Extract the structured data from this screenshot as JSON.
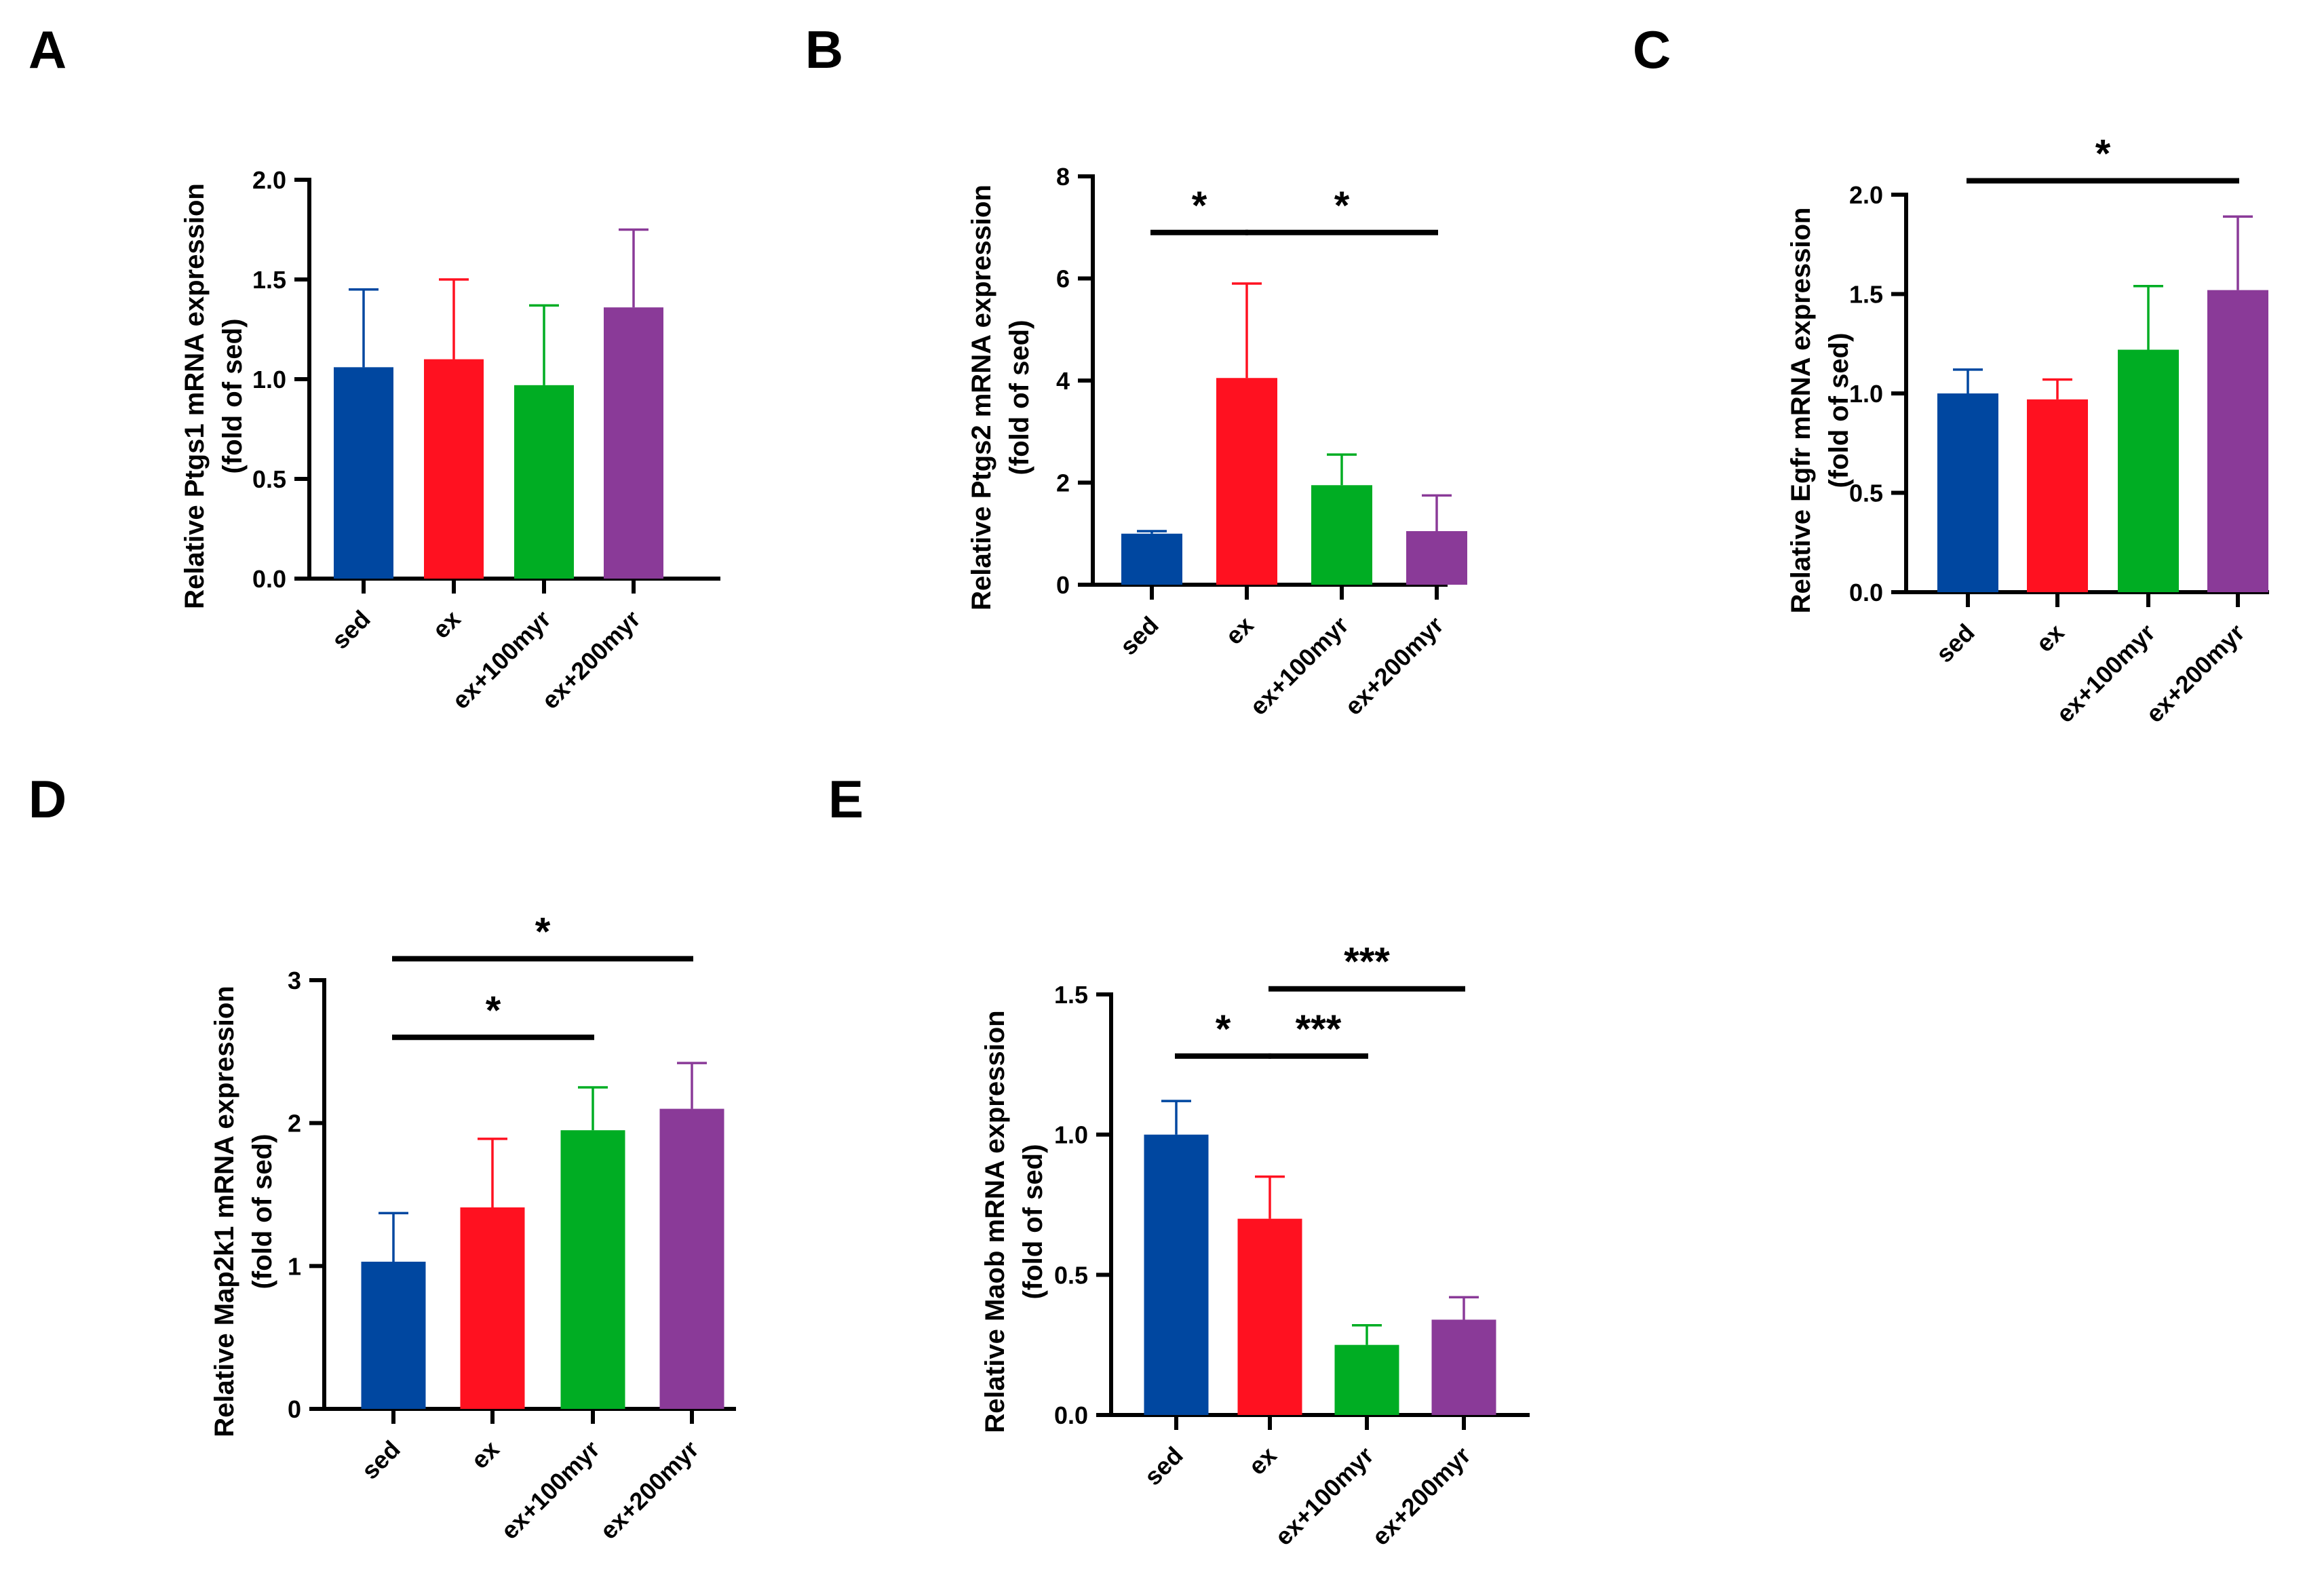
{
  "figure": {
    "categories": [
      "sed",
      "ex",
      "ex+100myr",
      "ex+200myr"
    ],
    "colors": [
      "#0047a0",
      "#ff1120",
      "#00ad23",
      "#8a3a98"
    ]
  },
  "chart_data": [
    {
      "panel": "A",
      "type": "bar",
      "categories": [
        "sed",
        "ex",
        "ex+100myr",
        "ex+200myr"
      ],
      "series": [
        {
          "values": [
            1.06,
            1.1,
            0.97,
            1.36
          ],
          "errors": [
            0.39,
            0.4,
            0.4,
            0.39
          ]
        }
      ],
      "ylabel": [
        "Relative Ptgs1 mRNA expression",
        "(fold of sed)"
      ],
      "ylim": [
        0,
        2
      ],
      "yticks": [
        "0.0",
        "0.5",
        "1.0",
        "1.5",
        "2.0"
      ],
      "significance": []
    },
    {
      "panel": "B",
      "type": "bar",
      "categories": [
        "sed",
        "ex",
        "ex+100myr",
        "ex+200myr"
      ],
      "series": [
        {
          "values": [
            1.0,
            4.05,
            1.95,
            1.05
          ],
          "errors": [
            0.05,
            1.85,
            0.6,
            0.7
          ]
        }
      ],
      "ylabel": [
        "Relative Ptgs2 mRNA expression",
        "(fold of sed)"
      ],
      "ylim": [
        0,
        8
      ],
      "yticks": [
        "0",
        "2",
        "4",
        "6",
        "8"
      ],
      "significance": [
        {
          "from": 0,
          "to": 1,
          "y": 6.9,
          "label": "*"
        },
        {
          "from": 1,
          "to": 3,
          "y": 6.9,
          "label": "*"
        }
      ]
    },
    {
      "panel": "C",
      "type": "bar",
      "categories": [
        "sed",
        "ex",
        "ex+100myr",
        "ex+200myr"
      ],
      "series": [
        {
          "values": [
            1.0,
            0.97,
            1.22,
            1.52
          ],
          "errors": [
            0.12,
            0.1,
            0.32,
            0.37
          ]
        }
      ],
      "ylabel": [
        "Relative Egfr mRNA expression",
        "(fold of sed)"
      ],
      "ylim": [
        0,
        2
      ],
      "yticks": [
        "0.0",
        "0.5",
        "1.0",
        "1.5",
        "2.0"
      ],
      "significance": [
        {
          "from": 0,
          "to": 3,
          "y": 2.07,
          "label": "*"
        }
      ]
    },
    {
      "panel": "D",
      "type": "bar",
      "categories": [
        "sed",
        "ex",
        "ex+100myr",
        "ex+200myr"
      ],
      "series": [
        {
          "values": [
            1.03,
            1.41,
            1.95,
            2.1
          ],
          "errors": [
            0.34,
            0.48,
            0.3,
            0.32
          ]
        }
      ],
      "ylabel": [
        "Relative Map2k1 mRNA expression",
        "(fold of sed)"
      ],
      "ylim": [
        0,
        3
      ],
      "yticks": [
        "0",
        "1",
        "2",
        "3"
      ],
      "significance": [
        {
          "from": 0,
          "to": 2,
          "y": 2.6,
          "label": "*"
        },
        {
          "from": 0,
          "to": 3,
          "y": 3.15,
          "label": "*"
        }
      ]
    },
    {
      "panel": "E",
      "type": "bar",
      "categories": [
        "sed",
        "ex",
        "ex+100myr",
        "ex+200myr"
      ],
      "series": [
        {
          "values": [
            1.0,
            0.7,
            0.25,
            0.34
          ],
          "errors": [
            0.12,
            0.15,
            0.07,
            0.08
          ]
        }
      ],
      "ylabel": [
        "Relative Maob mRNA expression",
        "(fold of sed)"
      ],
      "ylim": [
        0,
        1.5
      ],
      "yticks": [
        "0.0",
        "0.5",
        "1.0",
        "1.5"
      ],
      "significance": [
        {
          "from": 0,
          "to": 1,
          "y": 1.28,
          "label": "*"
        },
        {
          "from": 1,
          "to": 2,
          "y": 1.28,
          "label": "***"
        },
        {
          "from": 1,
          "to": 3,
          "y": 1.52,
          "label": "***"
        }
      ]
    }
  ]
}
